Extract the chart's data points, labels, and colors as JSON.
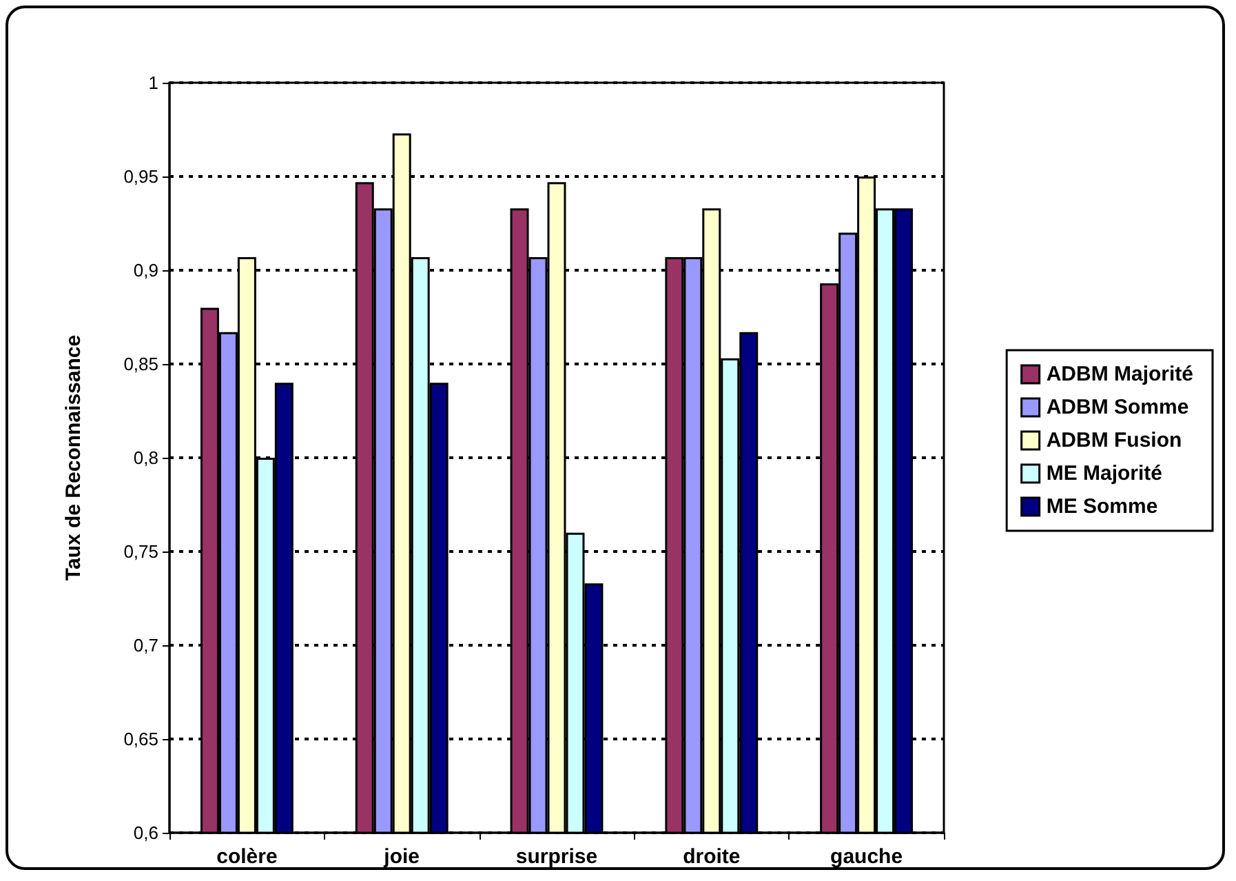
{
  "chart_data": {
    "type": "bar",
    "ylabel": "Taux de Reconnaissance",
    "categories": [
      "colère",
      "joie",
      "surprise",
      "droite",
      "gauche"
    ],
    "series": [
      {
        "name": "ADBM Majorité",
        "color": "#993366",
        "values": [
          0.88,
          0.947,
          0.933,
          0.907,
          0.893
        ]
      },
      {
        "name": "ADBM Somme",
        "color": "#9999ff",
        "values": [
          0.867,
          0.933,
          0.907,
          0.907,
          0.92
        ]
      },
      {
        "name": "ADBM Fusion",
        "color": "#ffffcc",
        "values": [
          0.907,
          0.973,
          0.947,
          0.933,
          0.95
        ]
      },
      {
        "name": "ME Majorité",
        "color": "#ccffff",
        "values": [
          0.8,
          0.907,
          0.76,
          0.853,
          0.933
        ]
      },
      {
        "name": "ME Somme",
        "color": "#000080",
        "values": [
          0.84,
          0.84,
          0.733,
          0.867,
          0.933
        ]
      }
    ],
    "ylim": [
      0.6,
      1
    ],
    "yticks": [
      {
        "value": 0.6,
        "label": "0,6"
      },
      {
        "value": 0.65,
        "label": "0,65"
      },
      {
        "value": 0.7,
        "label": "0,7"
      },
      {
        "value": 0.75,
        "label": "0,75"
      },
      {
        "value": 0.8,
        "label": "0,8"
      },
      {
        "value": 0.85,
        "label": "0,85"
      },
      {
        "value": 0.9,
        "label": "0,9"
      },
      {
        "value": 0.95,
        "label": "0,95"
      },
      {
        "value": 1,
        "label": "1"
      }
    ],
    "grid": "y",
    "legend": "right"
  }
}
